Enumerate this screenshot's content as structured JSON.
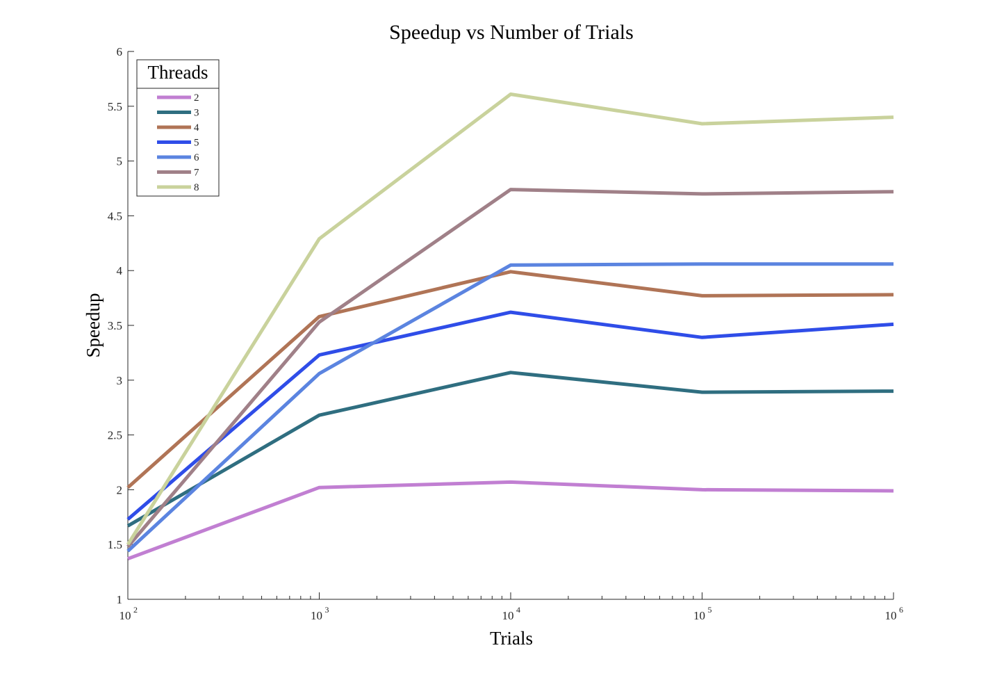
{
  "chart_data": {
    "type": "line",
    "title": "Speedup vs Number of Trials",
    "xlabel": "Trials",
    "ylabel": "Speedup",
    "x_scale": "log",
    "xlim": [
      100,
      1000000
    ],
    "ylim": [
      1,
      6
    ],
    "grid": false,
    "x": [
      100,
      1000,
      10000,
      100000,
      1000000
    ],
    "x_tick_labels": [
      {
        "base": "10",
        "exp": "2"
      },
      {
        "base": "10",
        "exp": "3"
      },
      {
        "base": "10",
        "exp": "4"
      },
      {
        "base": "10",
        "exp": "5"
      },
      {
        "base": "10",
        "exp": "6"
      }
    ],
    "y_ticks": [
      1,
      1.5,
      2,
      2.5,
      3,
      3.5,
      4,
      4.5,
      5,
      5.5,
      6
    ],
    "y_tick_labels": [
      "1",
      "1.5",
      "2",
      "2.5",
      "3",
      "3.5",
      "4",
      "4.5",
      "5",
      "5.5",
      "6"
    ],
    "legend": {
      "title": "Threads",
      "placement": "top-left"
    },
    "series": [
      {
        "name": "2",
        "color": "#c17fd2",
        "values": [
          1.37,
          2.02,
          2.07,
          2.0,
          1.99
        ]
      },
      {
        "name": "3",
        "color": "#2f6e80",
        "values": [
          1.67,
          2.68,
          3.07,
          2.89,
          2.9
        ]
      },
      {
        "name": "4",
        "color": "#b07456",
        "values": [
          2.02,
          3.58,
          3.99,
          3.77,
          3.78
        ]
      },
      {
        "name": "5",
        "color": "#2f4de8",
        "values": [
          1.73,
          3.23,
          3.62,
          3.39,
          3.51
        ]
      },
      {
        "name": "6",
        "color": "#5b84e0",
        "values": [
          1.44,
          3.06,
          4.05,
          4.06,
          4.06
        ]
      },
      {
        "name": "7",
        "color": "#a08088",
        "values": [
          1.48,
          3.53,
          4.74,
          4.7,
          4.72
        ]
      },
      {
        "name": "8",
        "color": "#c9d29c",
        "values": [
          1.5,
          4.29,
          5.61,
          5.34,
          5.4
        ]
      }
    ]
  }
}
